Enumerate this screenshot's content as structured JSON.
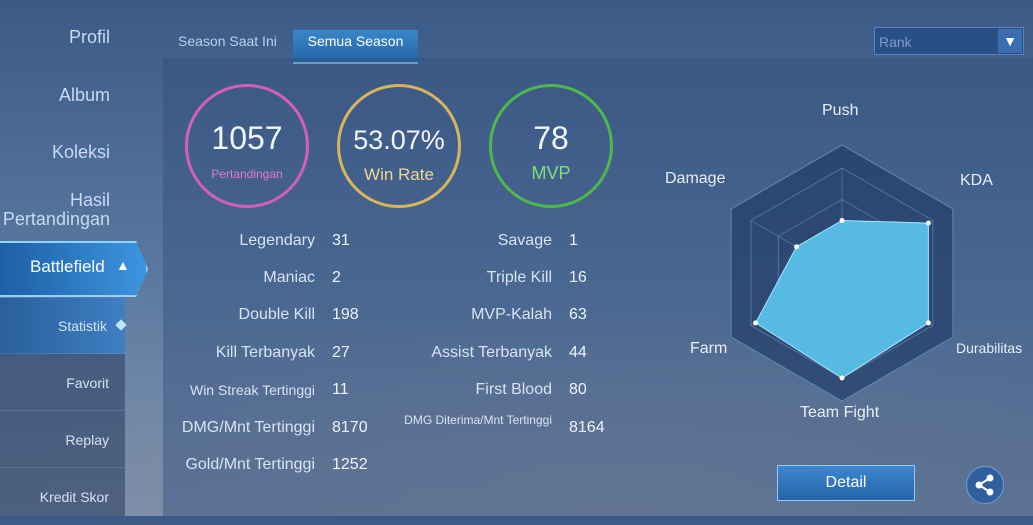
{
  "sidebar": {
    "items": [
      "Profil",
      "Album",
      "Koleksi",
      "Hasil Pertandingan"
    ],
    "battlefield_label": "Battlefield",
    "sub_items": [
      "Statistik",
      "Favorit",
      "Replay",
      "Kredit Skor"
    ]
  },
  "tabs": [
    "Season Saat Ini",
    "Semua Season"
  ],
  "rank_select": {
    "value": "Rank"
  },
  "summary": {
    "matches": {
      "value": "1057",
      "label": "Pertandingan",
      "color": "#d45fb8"
    },
    "win_rate": {
      "value": "53.07%",
      "label": "Win Rate",
      "color": "#d8b45a"
    },
    "mvp": {
      "value": "78",
      "label": "MVP",
      "color": "#4fb84a"
    }
  },
  "stats_left": [
    {
      "label": "Legendary",
      "value": "31"
    },
    {
      "label": "Maniac",
      "value": "2"
    },
    {
      "label": "Double Kill",
      "value": "198"
    },
    {
      "label": "Kill Terbanyak",
      "value": "27"
    },
    {
      "label": "Win Streak Tertinggi",
      "value": "11"
    },
    {
      "label": "DMG/Mnt Tertinggi",
      "value": "8170"
    },
    {
      "label": "Gold/Mnt Tertinggi",
      "value": "1252"
    }
  ],
  "stats_right": [
    {
      "label": "Savage",
      "value": "1"
    },
    {
      "label": "Triple Kill",
      "value": "16"
    },
    {
      "label": "MVP-Kalah",
      "value": "63"
    },
    {
      "label": "Assist Terbanyak",
      "value": "44"
    },
    {
      "label": "First Blood",
      "value": "80"
    },
    {
      "label": "DMG Diterima/Mnt Tertinggi",
      "value": "8164"
    }
  ],
  "radar": {
    "labels": [
      "Push",
      "KDA",
      "Durabilitas",
      "Team Fight",
      "Farm",
      "Damage"
    ],
    "values": [
      0.5,
      0.95,
      0.95,
      1.0,
      0.95,
      0.5
    ],
    "fill_color": "#5cc6ee"
  },
  "buttons": {
    "detail": "Detail",
    "share_icon": "share-icon"
  }
}
